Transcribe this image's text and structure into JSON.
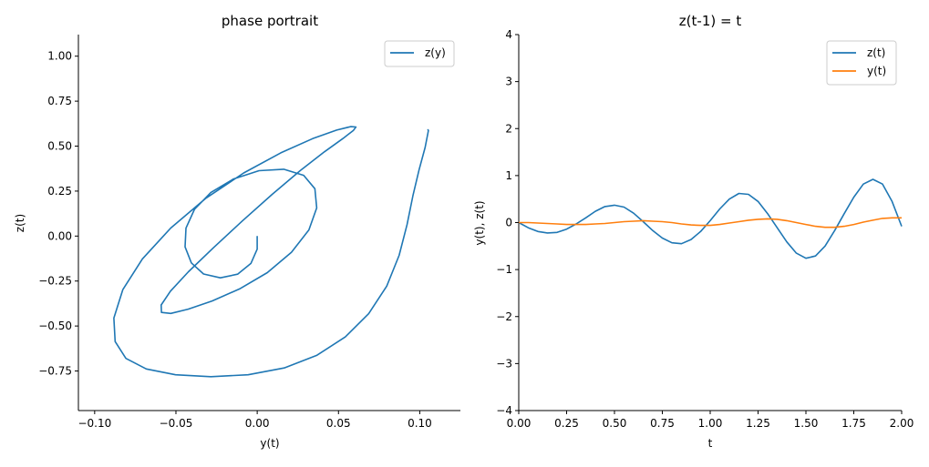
{
  "chart_data": [
    {
      "type": "line",
      "title": "phase portrait",
      "xlabel": "y(t)",
      "ylabel": "z(t)",
      "xlim": [
        -0.11,
        0.125
      ],
      "ylim": [
        -0.97,
        1.12
      ],
      "xticks": [
        -0.1,
        -0.05,
        0.0,
        0.05,
        0.1
      ],
      "xtick_labels": [
        "−0.10",
        "−0.05",
        "0.00",
        "0.05",
        "0.10"
      ],
      "yticks": [
        -0.75,
        -0.5,
        -0.25,
        0.0,
        0.25,
        0.5,
        0.75,
        1.0
      ],
      "ytick_labels": [
        "−0.75",
        "−0.50",
        "−0.25",
        "0.00",
        "0.25",
        "0.50",
        "0.75",
        "1.00"
      ],
      "legend_position": "top-right",
      "grid": false,
      "series": [
        {
          "name": "z(y)",
          "color": "#1f77b4",
          "x": [
            0.0,
            0.0,
            -0.0039,
            -0.0121,
            -0.0227,
            -0.033,
            -0.0405,
            -0.0444,
            -0.0438,
            -0.0386,
            -0.0285,
            -0.0146,
            0.0011,
            0.0163,
            0.0286,
            0.0355,
            0.0366,
            0.0318,
            0.0211,
            0.0062,
            -0.0109,
            -0.0277,
            -0.0425,
            -0.0532,
            -0.0589,
            -0.0591,
            -0.0534,
            -0.0423,
            -0.0269,
            -0.0092,
            0.0091,
            0.0264,
            0.0413,
            0.0527,
            0.0592,
            0.0607,
            0.0575,
            0.0489,
            0.0341,
            0.0145,
            -0.0083,
            -0.0318,
            -0.0532,
            -0.0706,
            -0.0827,
            -0.0882,
            -0.0874,
            -0.0808,
            -0.0682,
            -0.0502,
            -0.0285,
            -0.0056,
            0.0166,
            0.0368,
            0.0542,
            0.0686,
            0.0797,
            0.0873,
            0.0922,
            0.0958,
            0.0996,
            0.1033,
            0.1053,
            0.1049
          ],
          "y": [
            0.0,
            -0.0728,
            -0.1521,
            -0.2119,
            -0.2324,
            -0.2108,
            -0.1493,
            -0.0603,
            0.0439,
            0.1483,
            0.2427,
            0.3173,
            0.3632,
            0.3715,
            0.3375,
            0.2635,
            0.1565,
            0.0339,
            -0.0902,
            -0.2032,
            -0.294,
            -0.3607,
            -0.4061,
            -0.4298,
            -0.4244,
            -0.3831,
            -0.3065,
            -0.1981,
            -0.0648,
            0.0838,
            0.2315,
            0.3634,
            0.4684,
            0.5422,
            0.5874,
            0.6064,
            0.6082,
            0.5889,
            0.5417,
            0.4626,
            0.3508,
            0.2085,
            0.0445,
            -0.1268,
            -0.2978,
            -0.4559,
            -0.5865,
            -0.6799,
            -0.7385,
            -0.7711,
            -0.7818,
            -0.7713,
            -0.7333,
            -0.6624,
            -0.5608,
            -0.4318,
            -0.2784,
            -0.1071,
            0.0641,
            0.2237,
            0.3689,
            0.4926,
            0.5863,
            0.5935
          ]
        }
      ]
    },
    {
      "type": "line",
      "title": "z(t-1) = t",
      "xlabel": "t",
      "ylabel": "y(t), z(t)",
      "xlim": [
        0,
        2
      ],
      "ylim": [
        -4,
        4
      ],
      "xticks": [
        0,
        0.25,
        0.5,
        0.75,
        1.0,
        1.25,
        1.5,
        1.75,
        2.0
      ],
      "xtick_labels": [
        "0.00",
        "0.25",
        "0.50",
        "0.75",
        "1.00",
        "1.25",
        "1.50",
        "1.75",
        "2.00"
      ],
      "yticks": [
        -4,
        -3,
        -2,
        -1,
        0,
        1,
        2,
        3,
        4
      ],
      "ytick_labels": [
        "−4",
        "−3",
        "−2",
        "−1",
        "0",
        "1",
        "2",
        "3",
        "4"
      ],
      "legend_position": "top-right",
      "grid": false,
      "series": [
        {
          "name": "z(t)",
          "color": "#1f77b4",
          "x": [
            0.0,
            0.05,
            0.1,
            0.15,
            0.2,
            0.25,
            0.3,
            0.35,
            0.4,
            0.45,
            0.5,
            0.55,
            0.6,
            0.65,
            0.7,
            0.75,
            0.8,
            0.85,
            0.9,
            0.95,
            1.0,
            1.05,
            1.1,
            1.15,
            1.2,
            1.25,
            1.3,
            1.35,
            1.4,
            1.45,
            1.5,
            1.55,
            1.6,
            1.65,
            1.7,
            1.75,
            1.8,
            1.85,
            1.9,
            1.95,
            2.0
          ],
          "y": [
            0.0,
            -0.11,
            -0.19,
            -0.22,
            -0.21,
            -0.14,
            -0.03,
            0.1,
            0.24,
            0.34,
            0.37,
            0.33,
            0.2,
            0.02,
            -0.17,
            -0.33,
            -0.43,
            -0.45,
            -0.36,
            -0.19,
            0.04,
            0.29,
            0.5,
            0.62,
            0.6,
            0.45,
            0.19,
            -0.11,
            -0.41,
            -0.65,
            -0.76,
            -0.71,
            -0.5,
            -0.17,
            0.19,
            0.54,
            0.82,
            0.92,
            0.82,
            0.45,
            -0.08
          ]
        },
        {
          "name": "y(t)",
          "color": "#ff7f0e",
          "x": [
            0.0,
            0.05,
            0.1,
            0.15,
            0.2,
            0.25,
            0.3,
            0.35,
            0.4,
            0.45,
            0.5,
            0.55,
            0.6,
            0.65,
            0.7,
            0.75,
            0.8,
            0.85,
            0.9,
            0.95,
            1.0,
            1.05,
            1.1,
            1.15,
            1.2,
            1.25,
            1.3,
            1.35,
            1.4,
            1.45,
            1.5,
            1.55,
            1.6,
            1.65,
            1.7,
            1.75,
            1.8,
            1.85,
            1.9,
            1.95,
            2.0
          ],
          "y": [
            0.0,
            0.0,
            -0.01,
            -0.02,
            -0.03,
            -0.04,
            -0.04,
            -0.04,
            -0.03,
            -0.02,
            0.0,
            0.02,
            0.03,
            0.04,
            0.03,
            0.02,
            0.0,
            -0.03,
            -0.05,
            -0.06,
            -0.06,
            -0.04,
            -0.01,
            0.02,
            0.05,
            0.07,
            0.08,
            0.07,
            0.04,
            0.0,
            -0.04,
            -0.08,
            -0.1,
            -0.1,
            -0.08,
            -0.04,
            0.01,
            0.05,
            0.09,
            0.1,
            0.1
          ]
        }
      ]
    }
  ]
}
